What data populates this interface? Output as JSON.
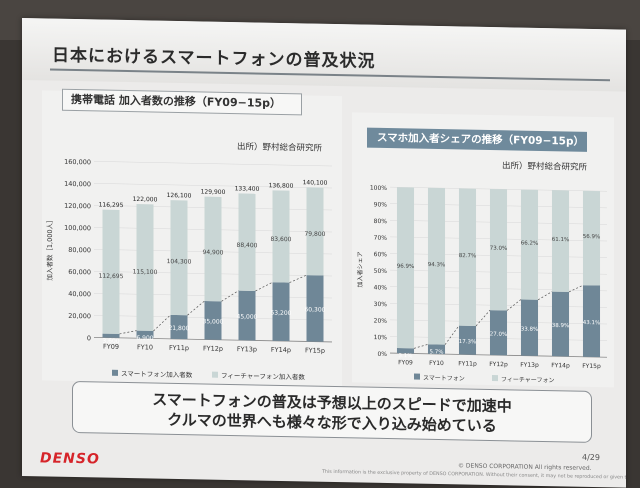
{
  "slide": {
    "title": "日本におけるスマートフォンの普及状況",
    "message_line1": "スマートフォンの普及は予想以上のスピードで加速中",
    "message_line2": "クルマの世界へも様々な形で入り込み始めている",
    "logo": "DENSO",
    "page": "4/29",
    "copyright": "© DENSO CORPORATION All rights reserved.",
    "disclaimer": "This information is the exclusive property of DENSO CORPORATION. Without their consent, it may not be reproduced or given to third parties."
  },
  "colors": {
    "smartphone": "#6f8797",
    "feature": "#c9d6d5",
    "heading_bg": "#6f8a9c",
    "logo_red": "#d6242a"
  },
  "chart_data": [
    {
      "type": "bar",
      "stacked": true,
      "title": "携帯電話 加入者数の推移（FY09−15p）",
      "source": "出所）野村総合研究所",
      "ylabel": "加入者数［1,000人］",
      "ylim": [
        0,
        160000
      ],
      "yticks": [
        "0",
        "20,000",
        "40,000",
        "60,000",
        "80,000",
        "100,000",
        "120,000",
        "140,000",
        "160,000"
      ],
      "categories": [
        "FY09",
        "FY10",
        "FY11p",
        "FY12p",
        "FY13p",
        "FY14p",
        "FY15p"
      ],
      "totals": [
        "116,295",
        "122,000",
        "126,100",
        "129,900",
        "133,400",
        "136,800",
        "140,100"
      ],
      "series": [
        {
          "name": "スマートフォン加入者数",
          "values": [
            3600,
            6900,
            21800,
            35000,
            45000,
            53200,
            60300
          ],
          "labels": [
            "3,600",
            "6,900",
            "21,800",
            "35,000",
            "45,000",
            "53,200",
            "60,300"
          ]
        },
        {
          "name": "フィーチャーフォン加入者数",
          "values": [
            112695,
            115100,
            104300,
            94900,
            88400,
            83600,
            79800
          ],
          "labels": [
            "112,695",
            "115,100",
            "104,300",
            "94,900",
            "88,400",
            "83,600",
            "79,800"
          ]
        }
      ],
      "legend": "bottom"
    },
    {
      "type": "bar",
      "stacked": true,
      "title": "スマホ加入者シェアの推移（FY09−15p）",
      "source": "出所）野村総合研究所",
      "ylabel": "加入者シェア",
      "ylim": [
        0,
        100
      ],
      "yticks": [
        "0%",
        "10%",
        "20%",
        "30%",
        "40%",
        "50%",
        "60%",
        "70%",
        "80%",
        "90%",
        "100%"
      ],
      "categories": [
        "FY09",
        "FY10",
        "FY11p",
        "FY12p",
        "FY13p",
        "FY14p",
        "FY15p"
      ],
      "series": [
        {
          "name": "スマートフォン",
          "values": [
            3.1,
            5.7,
            17.3,
            27.0,
            33.8,
            38.9,
            43.1
          ],
          "labels": [
            "3.1%",
            "5.7%",
            "17.3%",
            "27.0%",
            "33.8%",
            "38.9%",
            "43.1%"
          ]
        },
        {
          "name": "フィーチャーフォン",
          "values": [
            96.9,
            94.3,
            82.7,
            73.0,
            66.2,
            61.1,
            56.9
          ],
          "labels": [
            "96.9%",
            "94.3%",
            "82.7%",
            "73.0%",
            "66.2%",
            "61.1%",
            "56.9%"
          ]
        }
      ],
      "legend": "bottom"
    }
  ]
}
